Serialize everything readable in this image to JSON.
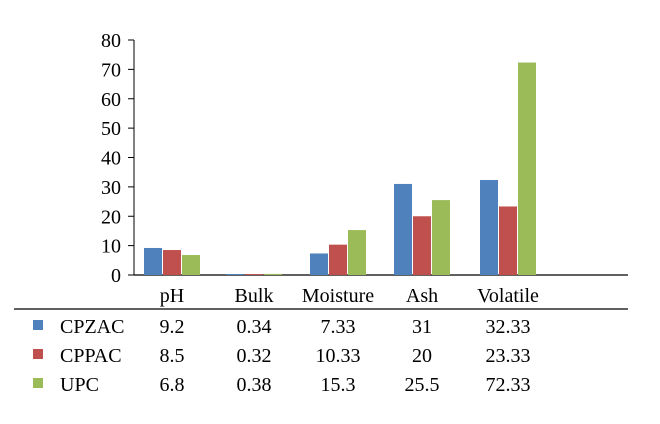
{
  "chart_data": {
    "type": "bar",
    "categories": [
      "pH",
      "Bulk",
      "Moisture",
      "Ash",
      "Volatile"
    ],
    "series": [
      {
        "name": "CPZAC",
        "color": "#4f81bd",
        "values": [
          9.2,
          0.34,
          7.33,
          31,
          32.33
        ],
        "labels": [
          "9.2",
          "0.34",
          "7.33",
          "31",
          "32.33"
        ]
      },
      {
        "name": "CPPAC",
        "color": "#c0504d",
        "values": [
          8.5,
          0.32,
          10.33,
          20,
          23.33
        ],
        "labels": [
          "8.5",
          "0.32",
          "10.33",
          "20",
          "23.33"
        ]
      },
      {
        "name": "UPC",
        "color": "#9bbb59",
        "values": [
          6.8,
          0.38,
          15.3,
          25.5,
          72.33
        ],
        "labels": [
          "6.8",
          "0.38",
          "15.3",
          "25.5",
          "72.33"
        ]
      }
    ],
    "ylim": [
      0,
      80
    ],
    "yticks": [
      0,
      10,
      20,
      30,
      40,
      50,
      60,
      70,
      80
    ],
    "grid": false,
    "legend": "data-table"
  }
}
